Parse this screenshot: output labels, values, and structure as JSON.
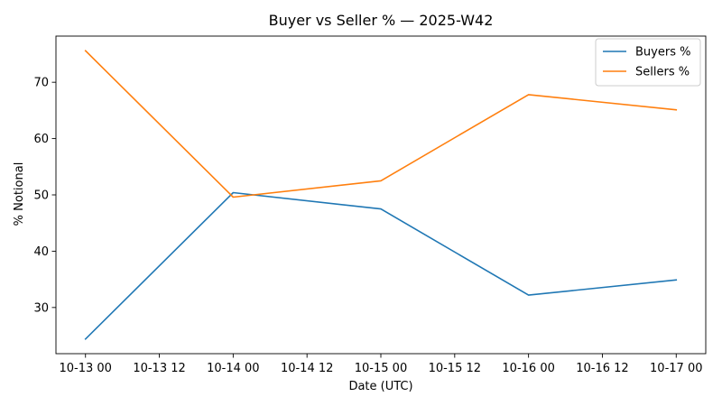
{
  "chart_data": {
    "type": "line",
    "title": "Buyer vs Seller % — 2025-W42",
    "xlabel": "Date (UTC)",
    "ylabel": "% Notional",
    "x": [
      "2025-10-13 00:00",
      "2025-10-14 00:00",
      "2025-10-15 00:00",
      "2025-10-16 00:00",
      "2025-10-17 00:00"
    ],
    "series": [
      {
        "name": "Buyers %",
        "color": "#1f77b4",
        "values": [
          24.4,
          50.4,
          47.5,
          32.2,
          34.9
        ]
      },
      {
        "name": "Sellers %",
        "color": "#ff7f0e",
        "values": [
          75.6,
          49.6,
          52.5,
          67.8,
          65.1
        ]
      }
    ],
    "xticks": [
      {
        "value": "2025-10-13 00:00",
        "label": "10-13 00"
      },
      {
        "value": "2025-10-13 12:00",
        "label": "10-13 12"
      },
      {
        "value": "2025-10-14 00:00",
        "label": "10-14 00"
      },
      {
        "value": "2025-10-14 12:00",
        "label": "10-14 12"
      },
      {
        "value": "2025-10-15 00:00",
        "label": "10-15 00"
      },
      {
        "value": "2025-10-15 12:00",
        "label": "10-15 12"
      },
      {
        "value": "2025-10-16 00:00",
        "label": "10-16 00"
      },
      {
        "value": "2025-10-16 12:00",
        "label": "10-16 12"
      },
      {
        "value": "2025-10-17 00:00",
        "label": "10-17 00"
      }
    ],
    "yticks": [
      30,
      40,
      50,
      60,
      70
    ],
    "xlim": [
      "2025-10-12 19:12",
      "2025-10-17 04:48"
    ],
    "ylim": [
      21.8,
      78.2
    ],
    "grid": false,
    "legend": "top-right"
  }
}
